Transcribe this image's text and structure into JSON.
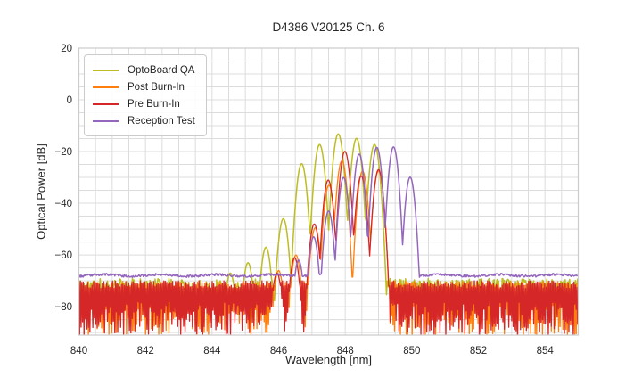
{
  "chart_data": {
    "type": "line",
    "title": "D4386 V20125 Ch. 6",
    "xlabel": "Wavelength [nm]",
    "ylabel": "Optical Power [dB]",
    "xlim": [
      840,
      855
    ],
    "ylim": [
      -91,
      20
    ],
    "xticks": [
      840,
      842,
      844,
      846,
      848,
      850,
      852,
      854
    ],
    "yticks": [
      20,
      0,
      -20,
      -40,
      -60,
      -80
    ],
    "grid": {
      "on": true,
      "x_step_nm": 0.5,
      "y_step_db": 5,
      "color": "#dcdcdc",
      "frame_color": "#cccccc"
    },
    "legend": {
      "position": "upper-left"
    },
    "tick_label_color": "#262626",
    "series": [
      {
        "name": "OptoBoard QA",
        "color": "#bcbd22",
        "floor": {
          "style": "noisy-line",
          "level_db": -72.3,
          "jitter_db": 3.2
        },
        "mode_half_width_nm": 0.25,
        "mode_dip_db": 28,
        "mode_peaks_nm_db": [
          [
            844.55,
            -67
          ],
          [
            845.08,
            -63
          ],
          [
            845.62,
            -57
          ],
          [
            846.14,
            -46
          ],
          [
            846.69,
            -24.7
          ],
          [
            847.23,
            -17.3
          ],
          [
            847.79,
            -13.2
          ],
          [
            848.34,
            -14.9
          ],
          [
            848.88,
            -17.3
          ]
        ]
      },
      {
        "name": "Post Burn-In",
        "color": "#ff7f0e",
        "floor": {
          "style": "block",
          "top_db": -70.2,
          "top_jitter_db": 3,
          "deep_db": -78,
          "deep_jitter_db": 13.4
        },
        "mode_half_width_nm": 0.25,
        "mode_dip_db": 30,
        "mode_peaks_nm_db": [
          [
            846.0,
            -66
          ],
          [
            846.52,
            -60
          ],
          [
            847.1,
            -49.5
          ],
          [
            847.51,
            -33
          ],
          [
            847.9,
            -23.6
          ],
          [
            848.52,
            -27.6
          ],
          [
            849.0,
            -27.5
          ]
        ]
      },
      {
        "name": "Pre Burn-In",
        "color": "#d62728",
        "floor": {
          "style": "block",
          "top_db": -70.0,
          "top_jitter_db": 3,
          "deep_db": -78,
          "deep_jitter_db": 13.4
        },
        "mode_half_width_nm": 0.25,
        "mode_dip_db": 30,
        "mode_peaks_nm_db": [
          [
            845.95,
            -67
          ],
          [
            846.48,
            -61
          ],
          [
            847.07,
            -48
          ],
          [
            847.49,
            -31
          ],
          [
            847.99,
            -19.9
          ],
          [
            848.48,
            -29.4
          ],
          [
            849.0,
            -27
          ]
        ]
      },
      {
        "name": "Reception Test",
        "color": "#9467bd",
        "floor": {
          "style": "smooth-line",
          "level_db": -67.9,
          "jitter_db": 0.9
        },
        "mode_half_width_nm": 0.25,
        "mode_dip_db": 32,
        "mode_peaks_nm_db": [
          [
            846.6,
            -62
          ],
          [
            847.05,
            -53
          ],
          [
            847.5,
            -43
          ],
          [
            847.95,
            -30
          ],
          [
            848.42,
            -21
          ],
          [
            848.95,
            -18.4
          ],
          [
            849.45,
            -18.2
          ],
          [
            849.95,
            -29.9
          ]
        ]
      }
    ]
  }
}
